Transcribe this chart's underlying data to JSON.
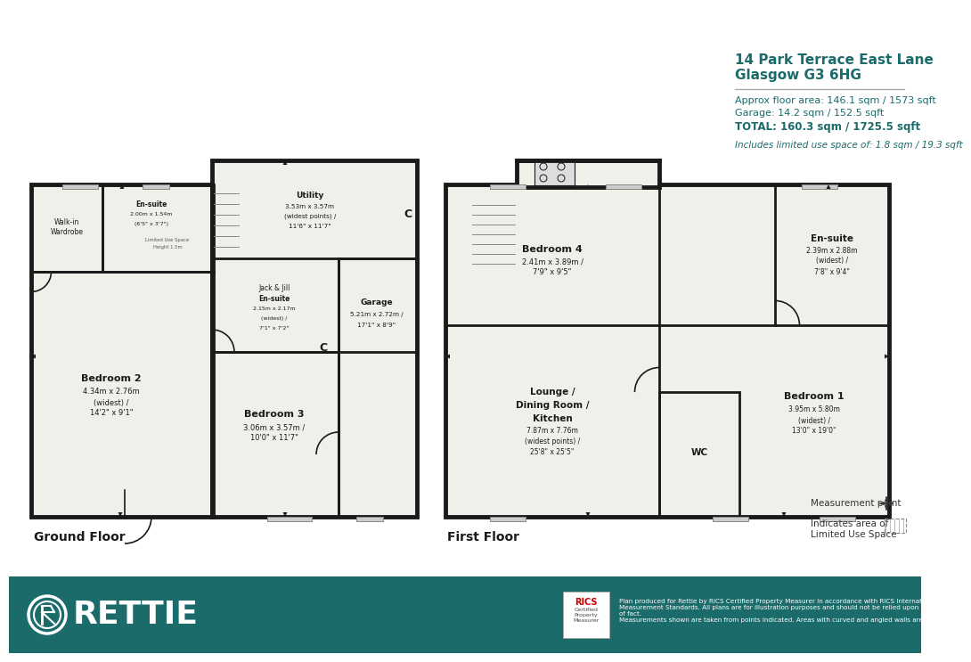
{
  "bg_color": "#ffffff",
  "footer_color": "#1b6b6b",
  "wall_color": "#1a1a1a",
  "floor_bg": "#f0f0ea",
  "text_color": "#1b6b6b",
  "title_line1": "14 Park Terrace East Lane",
  "title_line2": "Glasgow G3 6HG",
  "area_line1": "Approx floor area: 146.1 sqm / 1573 sqft",
  "area_line2": "Garage: 14.2 sqm / 152.5 sqft",
  "area_line3": "TOTAL: 160.3 sqm / 1725.5 sqft",
  "limited_use_text": "Includes limited use space of: 1.8 sqm / 19.3 sqft",
  "ground_floor_label": "Ground Floor",
  "first_floor_label": "First Floor",
  "rettie": "RETTIE",
  "footer_text": "Plan produced for Rettie by RICS Certified Property Measurer in accordance with RICS International Property\nMeasurement Standards. All plans are for illustration purposes and should not be relied upon as statement of fact.\nMeasurements shown are taken from points indicated. Areas with curved and angled walls are approximated",
  "measurement_point_label": "Measurement point",
  "limited_use_legend": "Indicates area of\nLimited Use Space"
}
